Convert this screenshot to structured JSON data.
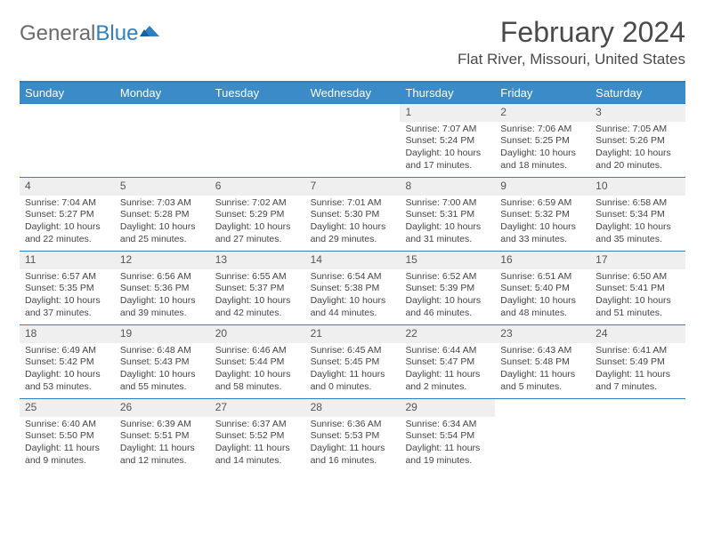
{
  "brand": {
    "part1": "General",
    "part2": "Blue"
  },
  "title": "February 2024",
  "location": "Flat River, Missouri, United States",
  "colors": {
    "header_bar": "#3b8bc9",
    "accent_line": "#2f7fc1",
    "daynum_bg": "#efefef",
    "text": "#444444"
  },
  "weekdays": [
    "Sunday",
    "Monday",
    "Tuesday",
    "Wednesday",
    "Thursday",
    "Friday",
    "Saturday"
  ],
  "weeks": [
    [
      null,
      null,
      null,
      null,
      {
        "n": "1",
        "sr": "Sunrise: 7:07 AM",
        "ss": "Sunset: 5:24 PM",
        "d1": "Daylight: 10 hours",
        "d2": "and 17 minutes."
      },
      {
        "n": "2",
        "sr": "Sunrise: 7:06 AM",
        "ss": "Sunset: 5:25 PM",
        "d1": "Daylight: 10 hours",
        "d2": "and 18 minutes."
      },
      {
        "n": "3",
        "sr": "Sunrise: 7:05 AM",
        "ss": "Sunset: 5:26 PM",
        "d1": "Daylight: 10 hours",
        "d2": "and 20 minutes."
      }
    ],
    [
      {
        "n": "4",
        "sr": "Sunrise: 7:04 AM",
        "ss": "Sunset: 5:27 PM",
        "d1": "Daylight: 10 hours",
        "d2": "and 22 minutes."
      },
      {
        "n": "5",
        "sr": "Sunrise: 7:03 AM",
        "ss": "Sunset: 5:28 PM",
        "d1": "Daylight: 10 hours",
        "d2": "and 25 minutes."
      },
      {
        "n": "6",
        "sr": "Sunrise: 7:02 AM",
        "ss": "Sunset: 5:29 PM",
        "d1": "Daylight: 10 hours",
        "d2": "and 27 minutes."
      },
      {
        "n": "7",
        "sr": "Sunrise: 7:01 AM",
        "ss": "Sunset: 5:30 PM",
        "d1": "Daylight: 10 hours",
        "d2": "and 29 minutes."
      },
      {
        "n": "8",
        "sr": "Sunrise: 7:00 AM",
        "ss": "Sunset: 5:31 PM",
        "d1": "Daylight: 10 hours",
        "d2": "and 31 minutes."
      },
      {
        "n": "9",
        "sr": "Sunrise: 6:59 AM",
        "ss": "Sunset: 5:32 PM",
        "d1": "Daylight: 10 hours",
        "d2": "and 33 minutes."
      },
      {
        "n": "10",
        "sr": "Sunrise: 6:58 AM",
        "ss": "Sunset: 5:34 PM",
        "d1": "Daylight: 10 hours",
        "d2": "and 35 minutes."
      }
    ],
    [
      {
        "n": "11",
        "sr": "Sunrise: 6:57 AM",
        "ss": "Sunset: 5:35 PM",
        "d1": "Daylight: 10 hours",
        "d2": "and 37 minutes."
      },
      {
        "n": "12",
        "sr": "Sunrise: 6:56 AM",
        "ss": "Sunset: 5:36 PM",
        "d1": "Daylight: 10 hours",
        "d2": "and 39 minutes."
      },
      {
        "n": "13",
        "sr": "Sunrise: 6:55 AM",
        "ss": "Sunset: 5:37 PM",
        "d1": "Daylight: 10 hours",
        "d2": "and 42 minutes."
      },
      {
        "n": "14",
        "sr": "Sunrise: 6:54 AM",
        "ss": "Sunset: 5:38 PM",
        "d1": "Daylight: 10 hours",
        "d2": "and 44 minutes."
      },
      {
        "n": "15",
        "sr": "Sunrise: 6:52 AM",
        "ss": "Sunset: 5:39 PM",
        "d1": "Daylight: 10 hours",
        "d2": "and 46 minutes."
      },
      {
        "n": "16",
        "sr": "Sunrise: 6:51 AM",
        "ss": "Sunset: 5:40 PM",
        "d1": "Daylight: 10 hours",
        "d2": "and 48 minutes."
      },
      {
        "n": "17",
        "sr": "Sunrise: 6:50 AM",
        "ss": "Sunset: 5:41 PM",
        "d1": "Daylight: 10 hours",
        "d2": "and 51 minutes."
      }
    ],
    [
      {
        "n": "18",
        "sr": "Sunrise: 6:49 AM",
        "ss": "Sunset: 5:42 PM",
        "d1": "Daylight: 10 hours",
        "d2": "and 53 minutes."
      },
      {
        "n": "19",
        "sr": "Sunrise: 6:48 AM",
        "ss": "Sunset: 5:43 PM",
        "d1": "Daylight: 10 hours",
        "d2": "and 55 minutes."
      },
      {
        "n": "20",
        "sr": "Sunrise: 6:46 AM",
        "ss": "Sunset: 5:44 PM",
        "d1": "Daylight: 10 hours",
        "d2": "and 58 minutes."
      },
      {
        "n": "21",
        "sr": "Sunrise: 6:45 AM",
        "ss": "Sunset: 5:45 PM",
        "d1": "Daylight: 11 hours",
        "d2": "and 0 minutes."
      },
      {
        "n": "22",
        "sr": "Sunrise: 6:44 AM",
        "ss": "Sunset: 5:47 PM",
        "d1": "Daylight: 11 hours",
        "d2": "and 2 minutes."
      },
      {
        "n": "23",
        "sr": "Sunrise: 6:43 AM",
        "ss": "Sunset: 5:48 PM",
        "d1": "Daylight: 11 hours",
        "d2": "and 5 minutes."
      },
      {
        "n": "24",
        "sr": "Sunrise: 6:41 AM",
        "ss": "Sunset: 5:49 PM",
        "d1": "Daylight: 11 hours",
        "d2": "and 7 minutes."
      }
    ],
    [
      {
        "n": "25",
        "sr": "Sunrise: 6:40 AM",
        "ss": "Sunset: 5:50 PM",
        "d1": "Daylight: 11 hours",
        "d2": "and 9 minutes."
      },
      {
        "n": "26",
        "sr": "Sunrise: 6:39 AM",
        "ss": "Sunset: 5:51 PM",
        "d1": "Daylight: 11 hours",
        "d2": "and 12 minutes."
      },
      {
        "n": "27",
        "sr": "Sunrise: 6:37 AM",
        "ss": "Sunset: 5:52 PM",
        "d1": "Daylight: 11 hours",
        "d2": "and 14 minutes."
      },
      {
        "n": "28",
        "sr": "Sunrise: 6:36 AM",
        "ss": "Sunset: 5:53 PM",
        "d1": "Daylight: 11 hours",
        "d2": "and 16 minutes."
      },
      {
        "n": "29",
        "sr": "Sunrise: 6:34 AM",
        "ss": "Sunset: 5:54 PM",
        "d1": "Daylight: 11 hours",
        "d2": "and 19 minutes."
      },
      null,
      null
    ]
  ]
}
